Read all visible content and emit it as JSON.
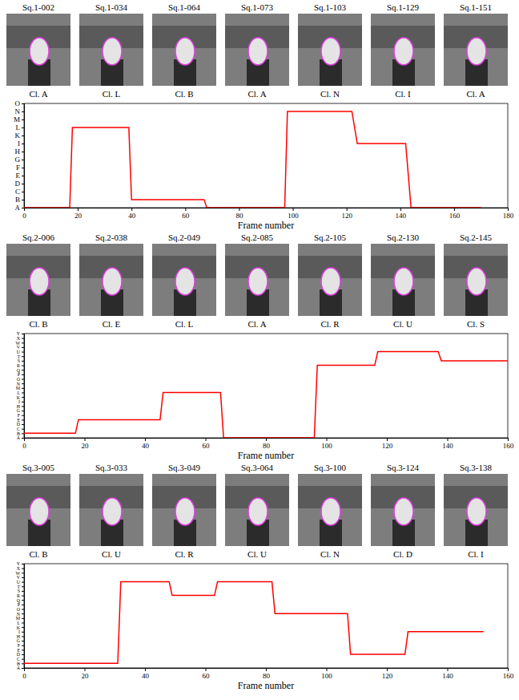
{
  "chart_data": [
    {
      "type": "line",
      "xlabel": "Frame number",
      "color": "#ff0000",
      "xlim": [
        0,
        180
      ],
      "xticks": [
        0,
        20,
        40,
        60,
        80,
        100,
        120,
        140,
        160,
        180
      ],
      "ylim": [
        0,
        13
      ],
      "yticks": [
        {
          "value": 0,
          "label": "A"
        },
        {
          "value": 1,
          "label": "B"
        },
        {
          "value": 2,
          "label": "C"
        },
        {
          "value": 3,
          "label": "D"
        },
        {
          "value": 4,
          "label": "E"
        },
        {
          "value": 5,
          "label": "F"
        },
        {
          "value": 6,
          "label": "G"
        },
        {
          "value": 7,
          "label": "H"
        },
        {
          "value": 8,
          "label": "I"
        },
        {
          "value": 9,
          "label": "K"
        },
        {
          "value": 10,
          "label": "L"
        },
        {
          "value": 11,
          "label": "M"
        },
        {
          "value": 12,
          "label": "N"
        },
        {
          "value": 13,
          "label": "O"
        }
      ],
      "x": [
        0,
        17,
        18,
        39,
        40,
        67,
        68,
        97,
        98,
        122,
        124,
        142,
        144,
        170
      ],
      "values": [
        0,
        0,
        10,
        10,
        1,
        1,
        0,
        0,
        12,
        12,
        8,
        8,
        0,
        0
      ],
      "frames": [
        {
          "title": "Sq.1-002",
          "class": "Cl. A"
        },
        {
          "title": "Sq.1-034",
          "class": "Cl. L"
        },
        {
          "title": "Sq.1-064",
          "class": "Cl. B"
        },
        {
          "title": "Sq.1-073",
          "class": "Cl. A"
        },
        {
          "title": "Sq.1-103",
          "class": "Cl. N"
        },
        {
          "title": "Sq.1-129",
          "class": "Cl. I"
        },
        {
          "title": "Sq.1-151",
          "class": "Cl. A"
        }
      ]
    },
    {
      "type": "line",
      "xlabel": "Frame number",
      "color": "#ff0000",
      "xlim": [
        0,
        160
      ],
      "xticks": [
        0,
        20,
        40,
        60,
        80,
        100,
        120,
        140,
        160
      ],
      "ylim": [
        0,
        23
      ],
      "yticks": [
        {
          "value": 0,
          "label": "A"
        },
        {
          "value": 1,
          "label": "B"
        },
        {
          "value": 2,
          "label": "C"
        },
        {
          "value": 3,
          "label": "D"
        },
        {
          "value": 4,
          "label": "E"
        },
        {
          "value": 5,
          "label": "F"
        },
        {
          "value": 6,
          "label": "G"
        },
        {
          "value": 7,
          "label": "H"
        },
        {
          "value": 8,
          "label": "I"
        },
        {
          "value": 9,
          "label": "K"
        },
        {
          "value": 10,
          "label": "L"
        },
        {
          "value": 11,
          "label": "M"
        },
        {
          "value": 12,
          "label": "N"
        },
        {
          "value": 13,
          "label": "O"
        },
        {
          "value": 14,
          "label": "P"
        },
        {
          "value": 15,
          "label": "Q"
        },
        {
          "value": 16,
          "label": "R"
        },
        {
          "value": 17,
          "label": "S"
        },
        {
          "value": 18,
          "label": "T"
        },
        {
          "value": 19,
          "label": "U"
        },
        {
          "value": 20,
          "label": "V"
        },
        {
          "value": 21,
          "label": "W"
        },
        {
          "value": 22,
          "label": "X"
        },
        {
          "value": 23,
          "label": "Y"
        }
      ],
      "x": [
        0,
        17,
        18,
        45,
        46,
        65,
        66,
        96,
        97,
        116,
        117,
        137,
        138,
        160
      ],
      "values": [
        1,
        1,
        4,
        4,
        10,
        10,
        0,
        0,
        16,
        16,
        19,
        19,
        17,
        17
      ],
      "frames": [
        {
          "title": "Sq.2-006",
          "class": "Cl. B"
        },
        {
          "title": "Sq.2-038",
          "class": "Cl. E"
        },
        {
          "title": "Sq.2-049",
          "class": "Cl. L"
        },
        {
          "title": "Sq.2-085",
          "class": "Cl. A"
        },
        {
          "title": "Sq.2-105",
          "class": "Cl. R"
        },
        {
          "title": "Sq.2-130",
          "class": "Cl. U"
        },
        {
          "title": "Sq.2-145",
          "class": "Cl. S"
        }
      ]
    },
    {
      "type": "line",
      "xlabel": "Frame number",
      "color": "#ff0000",
      "xlim": [
        0,
        160
      ],
      "xticks": [
        0,
        20,
        40,
        60,
        80,
        100,
        120,
        140,
        160
      ],
      "ylim": [
        0,
        23
      ],
      "yticks": [
        {
          "value": 0,
          "label": "A"
        },
        {
          "value": 1,
          "label": "B"
        },
        {
          "value": 2,
          "label": "C"
        },
        {
          "value": 3,
          "label": "D"
        },
        {
          "value": 4,
          "label": "E"
        },
        {
          "value": 5,
          "label": "F"
        },
        {
          "value": 6,
          "label": "G"
        },
        {
          "value": 7,
          "label": "H"
        },
        {
          "value": 8,
          "label": "I"
        },
        {
          "value": 9,
          "label": "K"
        },
        {
          "value": 10,
          "label": "L"
        },
        {
          "value": 11,
          "label": "M"
        },
        {
          "value": 12,
          "label": "N"
        },
        {
          "value": 13,
          "label": "O"
        },
        {
          "value": 14,
          "label": "P"
        },
        {
          "value": 15,
          "label": "Q"
        },
        {
          "value": 16,
          "label": "R"
        },
        {
          "value": 17,
          "label": "S"
        },
        {
          "value": 18,
          "label": "T"
        },
        {
          "value": 19,
          "label": "U"
        },
        {
          "value": 20,
          "label": "V"
        },
        {
          "value": 21,
          "label": "W"
        },
        {
          "value": 22,
          "label": "X"
        },
        {
          "value": 23,
          "label": "Y"
        }
      ],
      "x": [
        0,
        31,
        32,
        48,
        49,
        63,
        64,
        82,
        83,
        107,
        108,
        126,
        127,
        152
      ],
      "values": [
        1,
        1,
        19,
        19,
        16,
        16,
        19,
        19,
        12,
        12,
        3,
        3,
        8,
        8
      ],
      "frames": [
        {
          "title": "Sq.3-005",
          "class": "Cl. B"
        },
        {
          "title": "Sq.3-033",
          "class": "Cl. U"
        },
        {
          "title": "Sq.3-049",
          "class": "Cl. R"
        },
        {
          "title": "Sq.3-064",
          "class": "Cl. U"
        },
        {
          "title": "Sq.3-100",
          "class": "Cl. N"
        },
        {
          "title": "Sq.3-124",
          "class": "Cl. D"
        },
        {
          "title": "Sq.3-138",
          "class": "Cl. I"
        }
      ]
    }
  ]
}
